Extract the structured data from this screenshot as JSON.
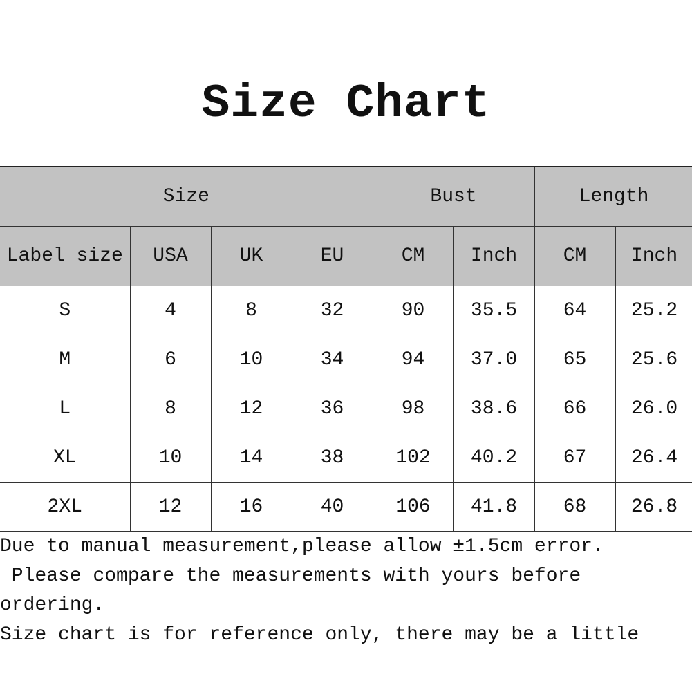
{
  "title": "Size Chart",
  "table": {
    "group_headers": [
      "Size",
      "Bust",
      "Length"
    ],
    "sub_headers": [
      "Label size",
      "USA",
      "UK",
      "EU",
      "CM",
      "Inch",
      "CM",
      "Inch"
    ],
    "rows": [
      [
        "S",
        "4",
        "8",
        "32",
        "90",
        "35.5",
        "64",
        "25.2"
      ],
      [
        "M",
        "6",
        "10",
        "34",
        "94",
        "37.0",
        "65",
        "25.6"
      ],
      [
        "L",
        "8",
        "12",
        "36",
        "98",
        "38.6",
        "66",
        "26.0"
      ],
      [
        "XL",
        "10",
        "14",
        "38",
        "102",
        "40.2",
        "67",
        "26.4"
      ],
      [
        "2XL",
        "12",
        "16",
        "40",
        "106",
        "41.8",
        "68",
        "26.8"
      ]
    ],
    "header_color": "#c2c2c2"
  },
  "notes": [
    "Due to manual measurement,please allow ±1.5cm error.",
    " Please compare the measurements with yours before",
    "ordering.",
    "Size chart is for reference only, there may be a little"
  ]
}
